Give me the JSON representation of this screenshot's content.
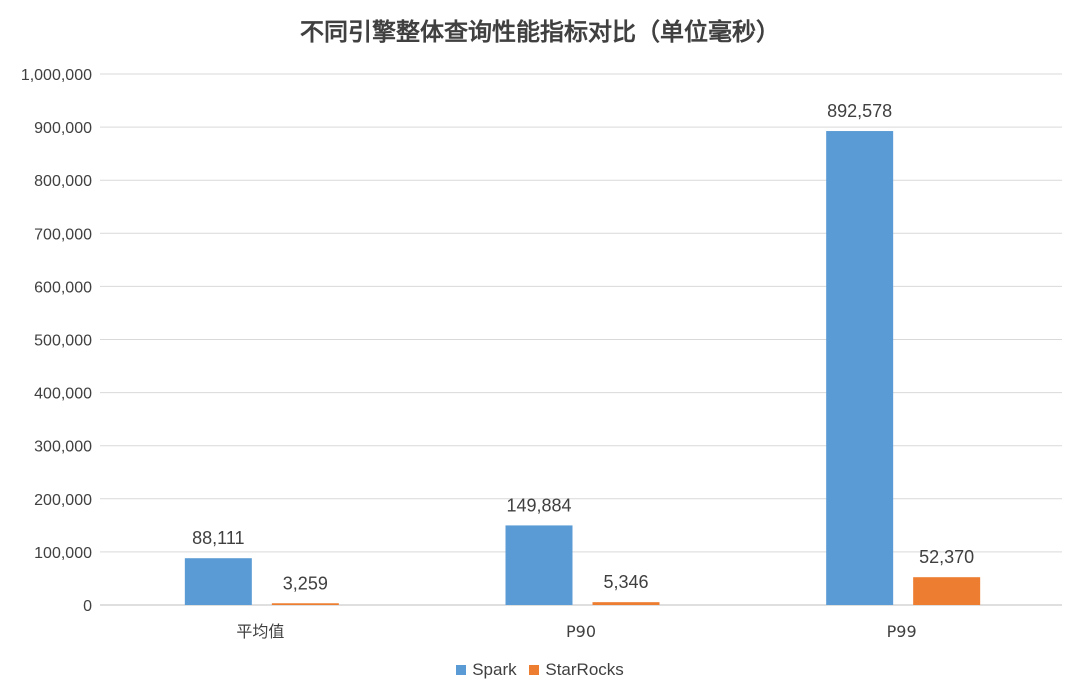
{
  "chart_data": {
    "type": "bar",
    "title": "不同引擎整体查询性能指标对比（单位毫秒）",
    "categories": [
      "平均值",
      "P90",
      "P99"
    ],
    "series": [
      {
        "name": "Spark",
        "color": "#5b9bd5",
        "values": [
          88111,
          149884,
          892578
        ],
        "labels": [
          "88,111",
          "149,884",
          "892,578"
        ]
      },
      {
        "name": "StarRocks",
        "color": "#ed7d31",
        "values": [
          3259,
          5346,
          52370
        ],
        "labels": [
          "3,259",
          "5,346",
          "52,370"
        ]
      }
    ],
    "ylim": [
      0,
      1000000
    ],
    "yticks": [
      "0",
      "100,000",
      "200,000",
      "300,000",
      "400,000",
      "500,000",
      "600,000",
      "700,000",
      "800,000",
      "900,000",
      "1,000,000"
    ],
    "grid": true,
    "legend": "bottom",
    "xlabel": "",
    "ylabel": ""
  }
}
